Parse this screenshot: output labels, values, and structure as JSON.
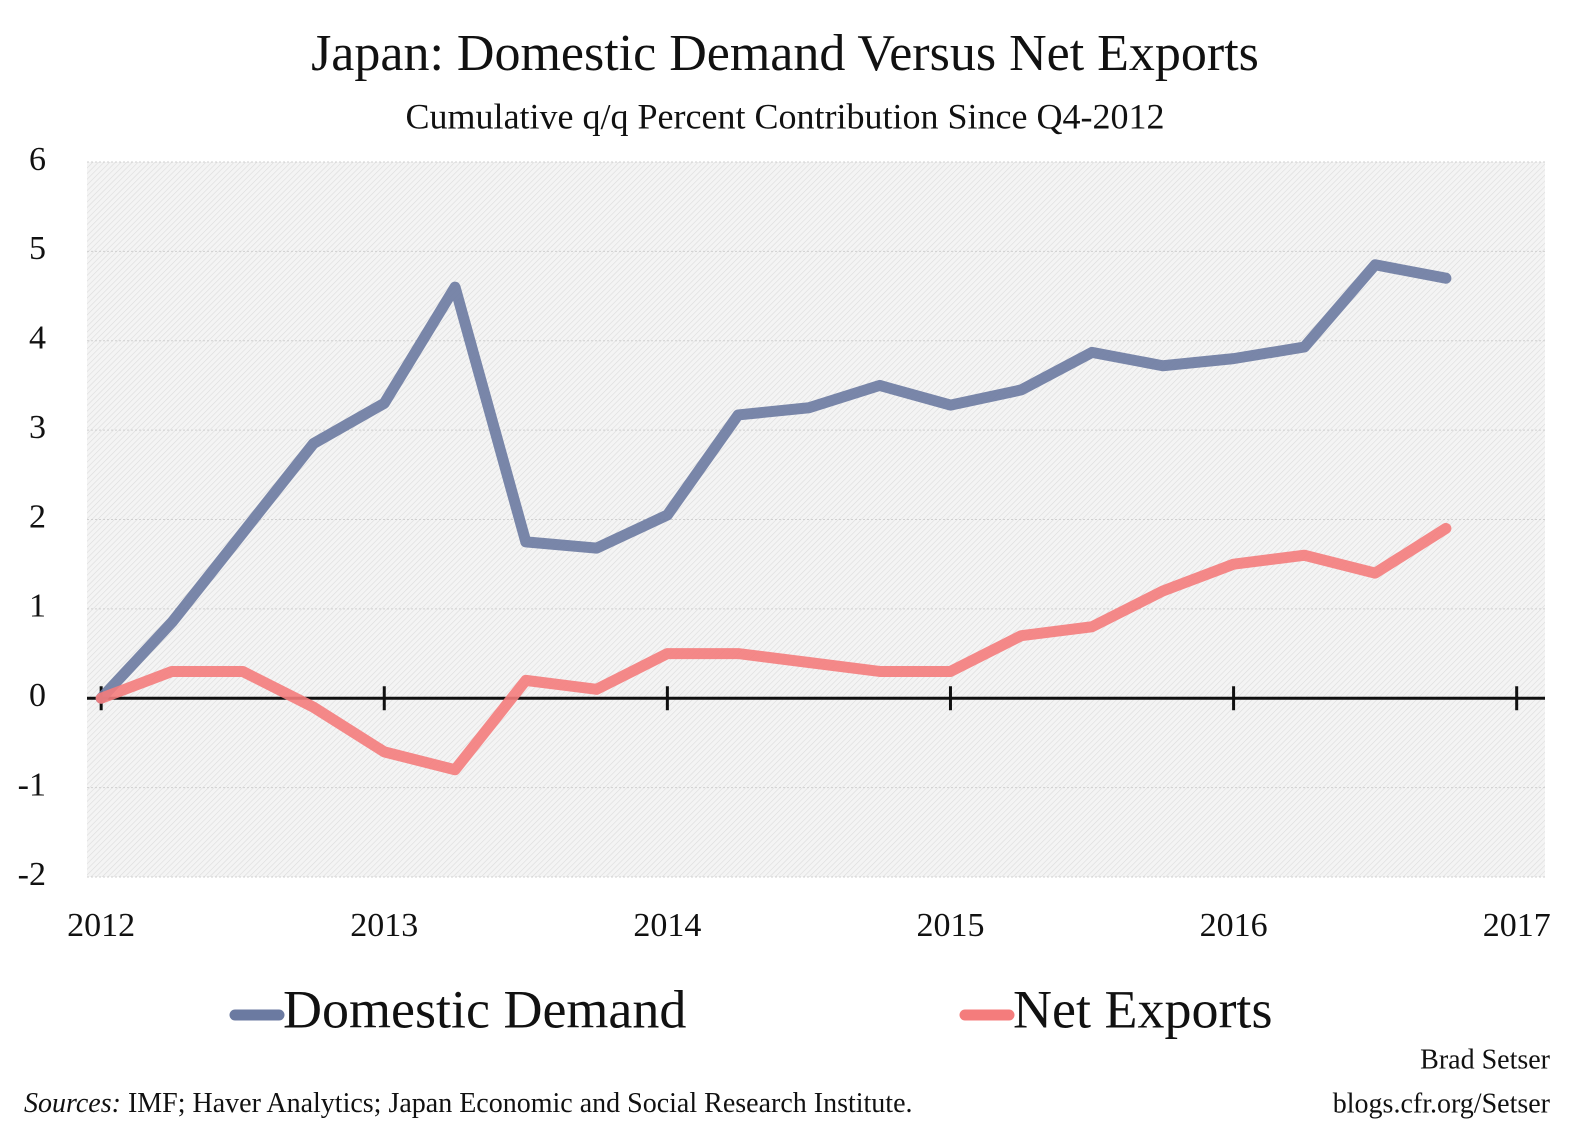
{
  "chart_data": {
    "type": "line",
    "title": "Japan: Domestic Demand Versus Net Exports",
    "subtitle": "Cumulative q/q Percent Contribution Since Q4-2012",
    "x": [
      2012,
      2012.25,
      2012.5,
      2012.75,
      2013,
      2013.25,
      2013.5,
      2013.75,
      2014,
      2014.25,
      2014.5,
      2014.75,
      2015,
      2015.25,
      2015.5,
      2015.75,
      2016,
      2016.25,
      2016.5,
      2016.75
    ],
    "series": [
      {
        "name": "Domestic Demand",
        "color": "#6b7aa1",
        "values": [
          0,
          0.85,
          1.85,
          2.85,
          3.3,
          4.6,
          1.75,
          1.68,
          2.05,
          3.17,
          3.25,
          3.5,
          3.28,
          3.45,
          3.87,
          3.72,
          3.8,
          3.93,
          4.85,
          4.7
        ]
      },
      {
        "name": "Net Exports",
        "color": "#f47c7c",
        "values": [
          0,
          0.3,
          0.3,
          -0.1,
          -0.6,
          -0.8,
          0.2,
          0.1,
          0.5,
          0.5,
          0.4,
          0.3,
          0.3,
          0.7,
          0.8,
          1.2,
          1.5,
          1.6,
          1.4,
          1.9
        ]
      }
    ],
    "xlim": [
      2011.95,
      2017.1
    ],
    "xticks": [
      2012,
      2013,
      2014,
      2015,
      2016,
      2017
    ],
    "ylim": [
      -2,
      6
    ],
    "yticks": [
      -2,
      -1,
      0,
      1,
      2,
      3,
      4,
      5,
      6
    ],
    "grid": true,
    "author": "Brad Setser",
    "site": "blogs.cfr.org/Setser",
    "sources": {
      "label": "Sources:",
      "text": "IMF; Haver Analytics; Japan Economic and Social Research Institute."
    }
  }
}
